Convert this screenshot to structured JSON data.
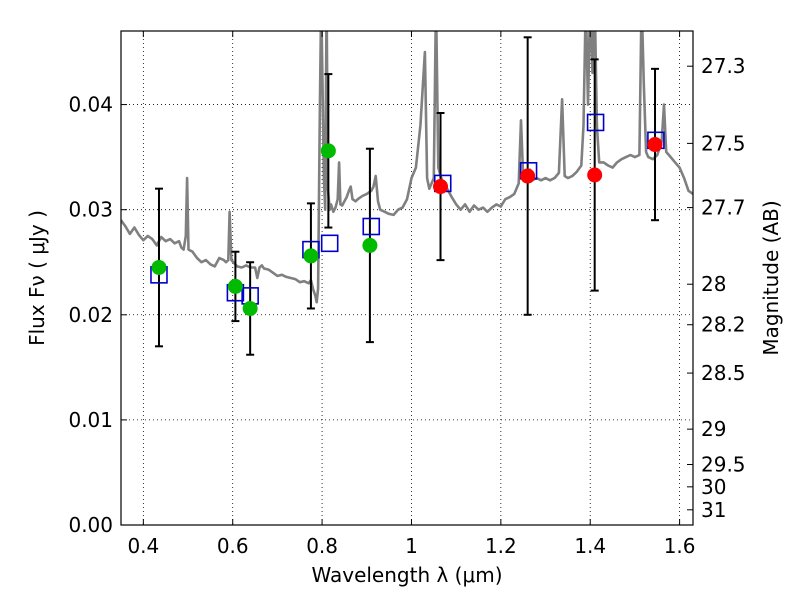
{
  "chart_data": {
    "type": "scatter",
    "xlabel": "Wavelength  λ (μm)",
    "ylabel": "Flux  Fν  ( μJy )",
    "y2label": "Magnitude (AB)",
    "xlim": [
      0.35,
      1.63
    ],
    "ylim": [
      0.0,
      0.047
    ],
    "grid": true,
    "x_ticks": [
      0.4,
      0.6,
      0.8,
      1.0,
      1.2,
      1.4,
      1.6
    ],
    "x_tick_labels": [
      "0.4",
      "0.6",
      "0.8",
      "1",
      "1.2",
      "1.4",
      "1.6"
    ],
    "y_ticks": [
      0.0,
      0.01,
      0.02,
      0.03,
      0.04
    ],
    "y_tick_labels": [
      "0.00",
      "0.01",
      "0.02",
      "0.03",
      "0.04"
    ],
    "mag_ticks": [
      27.3,
      27.5,
      27.7,
      28.0,
      28.2,
      28.5,
      29.0,
      29.5,
      30.0,
      31.0
    ],
    "mag_tick_labels": [
      "27.3",
      "27.5",
      "27.7",
      "28",
      "28.2",
      "28.5",
      "29",
      "29.5",
      "30",
      "31"
    ],
    "colors": {
      "model": "#808080",
      "observed_hst": "#00bb00",
      "observed_ir": "#ff0000",
      "model_photometry": "#0000cc",
      "errorbar": "#000000"
    },
    "observed": [
      {
        "x": 0.435,
        "y": 0.0245,
        "yerr_low": 0.0075,
        "yerr_high": 0.0075,
        "group": "observed_hst"
      },
      {
        "x": 0.606,
        "y": 0.0227,
        "yerr_low": 0.0033,
        "yerr_high": 0.0033,
        "group": "observed_hst"
      },
      {
        "x": 0.639,
        "y": 0.0206,
        "yerr_low": 0.0044,
        "yerr_high": 0.0044,
        "group": "observed_hst"
      },
      {
        "x": 0.775,
        "y": 0.0256,
        "yerr_low": 0.005,
        "yerr_high": 0.005,
        "group": "observed_hst"
      },
      {
        "x": 0.814,
        "y": 0.0356,
        "yerr_low": 0.0073,
        "yerr_high": 0.0073,
        "group": "observed_hst"
      },
      {
        "x": 0.907,
        "y": 0.0266,
        "yerr_low": 0.0092,
        "yerr_high": 0.0092,
        "group": "observed_hst"
      },
      {
        "x": 1.065,
        "y": 0.0322,
        "yerr_low": 0.007,
        "yerr_high": 0.007,
        "group": "observed_ir"
      },
      {
        "x": 1.26,
        "y": 0.0332,
        "yerr_low": 0.0132,
        "yerr_high": 0.0132,
        "group": "observed_ir"
      },
      {
        "x": 1.41,
        "y": 0.0333,
        "yerr_low": 0.011,
        "yerr_high": 0.011,
        "group": "observed_ir"
      },
      {
        "x": 1.545,
        "y": 0.0362,
        "yerr_low": 0.0072,
        "yerr_high": 0.0072,
        "group": "observed_ir"
      }
    ],
    "model_photometry": [
      {
        "x": 0.435,
        "y": 0.0238
      },
      {
        "x": 0.606,
        "y": 0.0221
      },
      {
        "x": 0.639,
        "y": 0.0218
      },
      {
        "x": 0.775,
        "y": 0.0262
      },
      {
        "x": 0.817,
        "y": 0.0268
      },
      {
        "x": 0.91,
        "y": 0.0284
      },
      {
        "x": 1.07,
        "y": 0.0325
      },
      {
        "x": 1.262,
        "y": 0.0337
      },
      {
        "x": 1.412,
        "y": 0.0383
      },
      {
        "x": 1.547,
        "y": 0.0366
      }
    ],
    "model_spectrum": [
      [
        0.35,
        0.029
      ],
      [
        0.36,
        0.0284
      ],
      [
        0.37,
        0.0277
      ],
      [
        0.38,
        0.0283
      ],
      [
        0.39,
        0.0276
      ],
      [
        0.4,
        0.0271
      ],
      [
        0.41,
        0.0275
      ],
      [
        0.42,
        0.0272
      ],
      [
        0.43,
        0.0266
      ],
      [
        0.44,
        0.0274
      ],
      [
        0.45,
        0.027
      ],
      [
        0.46,
        0.0272
      ],
      [
        0.47,
        0.0268
      ],
      [
        0.48,
        0.027
      ],
      [
        0.485,
        0.0264
      ],
      [
        0.49,
        0.0262
      ],
      [
        0.495,
        0.0275
      ],
      [
        0.498,
        0.033
      ],
      [
        0.501,
        0.0262
      ],
      [
        0.51,
        0.026
      ],
      [
        0.52,
        0.0254
      ],
      [
        0.53,
        0.025
      ],
      [
        0.54,
        0.0252
      ],
      [
        0.55,
        0.0248
      ],
      [
        0.56,
        0.0246
      ],
      [
        0.57,
        0.0254
      ],
      [
        0.58,
        0.0252
      ],
      [
        0.585,
        0.025
      ],
      [
        0.59,
        0.0252
      ],
      [
        0.593,
        0.0298
      ],
      [
        0.597,
        0.0252
      ],
      [
        0.61,
        0.0246
      ],
      [
        0.62,
        0.0245
      ],
      [
        0.63,
        0.0247
      ],
      [
        0.64,
        0.0245
      ],
      [
        0.65,
        0.0245
      ],
      [
        0.655,
        0.0235
      ],
      [
        0.66,
        0.0245
      ],
      [
        0.665,
        0.0247
      ],
      [
        0.67,
        0.0244
      ],
      [
        0.68,
        0.0243
      ],
      [
        0.69,
        0.024
      ],
      [
        0.7,
        0.0237
      ],
      [
        0.71,
        0.0238
      ],
      [
        0.72,
        0.0236
      ],
      [
        0.73,
        0.0235
      ],
      [
        0.74,
        0.0234
      ],
      [
        0.75,
        0.0231
      ],
      [
        0.76,
        0.0232
      ],
      [
        0.77,
        0.023
      ],
      [
        0.775,
        0.0233
      ],
      [
        0.78,
        0.0224
      ],
      [
        0.785,
        0.0218
      ],
      [
        0.788,
        0.0212
      ],
      [
        0.791,
        0.0225
      ],
      [
        0.795,
        0.04
      ],
      [
        0.798,
        0.05
      ],
      [
        0.801,
        0.042
      ],
      [
        0.804,
        0.033
      ],
      [
        0.807,
        0.03
      ],
      [
        0.81,
        0.05
      ],
      [
        0.813,
        0.032
      ],
      [
        0.817,
        0.03
      ],
      [
        0.82,
        0.0305
      ],
      [
        0.825,
        0.0298
      ],
      [
        0.83,
        0.0302
      ],
      [
        0.835,
        0.031
      ],
      [
        0.838,
        0.0345
      ],
      [
        0.841,
        0.0305
      ],
      [
        0.845,
        0.0304
      ],
      [
        0.85,
        0.0308
      ],
      [
        0.855,
        0.0312
      ],
      [
        0.86,
        0.0318
      ],
      [
        0.864,
        0.0322
      ],
      [
        0.868,
        0.031
      ],
      [
        0.875,
        0.0308
      ],
      [
        0.88,
        0.031
      ],
      [
        0.89,
        0.0313
      ],
      [
        0.9,
        0.0315
      ],
      [
        0.91,
        0.0318
      ],
      [
        0.915,
        0.0322
      ],
      [
        0.92,
        0.0332
      ],
      [
        0.925,
        0.0308
      ],
      [
        0.93,
        0.03
      ],
      [
        0.94,
        0.0298
      ],
      [
        0.95,
        0.0296
      ],
      [
        0.96,
        0.0295
      ],
      [
        0.97,
        0.03
      ],
      [
        0.98,
        0.0302
      ],
      [
        0.99,
        0.031
      ],
      [
        1.0,
        0.033
      ],
      [
        1.01,
        0.034
      ],
      [
        1.02,
        0.038
      ],
      [
        1.03,
        0.045
      ],
      [
        1.035,
        0.033
      ],
      [
        1.04,
        0.032
      ],
      [
        1.05,
        0.033
      ],
      [
        1.055,
        0.05
      ],
      [
        1.06,
        0.034
      ],
      [
        1.07,
        0.0325
      ],
      [
        1.08,
        0.032
      ],
      [
        1.09,
        0.0312
      ],
      [
        1.1,
        0.0305
      ],
      [
        1.11,
        0.03
      ],
      [
        1.12,
        0.0305
      ],
      [
        1.13,
        0.0298
      ],
      [
        1.14,
        0.0304
      ],
      [
        1.15,
        0.03
      ],
      [
        1.16,
        0.0302
      ],
      [
        1.17,
        0.0298
      ],
      [
        1.18,
        0.0302
      ],
      [
        1.19,
        0.0305
      ],
      [
        1.2,
        0.0303
      ],
      [
        1.21,
        0.031
      ],
      [
        1.22,
        0.0312
      ],
      [
        1.23,
        0.0315
      ],
      [
        1.24,
        0.0325
      ],
      [
        1.245,
        0.0385
      ],
      [
        1.25,
        0.033
      ],
      [
        1.26,
        0.0328
      ],
      [
        1.265,
        0.0338
      ],
      [
        1.27,
        0.0328
      ],
      [
        1.28,
        0.033
      ],
      [
        1.29,
        0.0328
      ],
      [
        1.3,
        0.033
      ],
      [
        1.31,
        0.0328
      ],
      [
        1.32,
        0.033
      ],
      [
        1.33,
        0.0335
      ],
      [
        1.337,
        0.0405
      ],
      [
        1.343,
        0.0332
      ],
      [
        1.35,
        0.033
      ],
      [
        1.36,
        0.0332
      ],
      [
        1.37,
        0.0336
      ],
      [
        1.38,
        0.0342
      ],
      [
        1.385,
        0.038
      ],
      [
        1.39,
        0.05
      ],
      [
        1.395,
        0.04
      ],
      [
        1.4,
        0.05
      ],
      [
        1.405,
        0.043
      ],
      [
        1.41,
        0.05
      ],
      [
        1.415,
        0.038
      ],
      [
        1.42,
        0.0345
      ],
      [
        1.43,
        0.0345
      ],
      [
        1.44,
        0.0342
      ],
      [
        1.45,
        0.034
      ],
      [
        1.46,
        0.0345
      ],
      [
        1.47,
        0.0348
      ],
      [
        1.48,
        0.035
      ],
      [
        1.49,
        0.0352
      ],
      [
        1.5,
        0.035
      ],
      [
        1.51,
        0.0352
      ],
      [
        1.515,
        0.05
      ],
      [
        1.52,
        0.042
      ],
      [
        1.525,
        0.0355
      ],
      [
        1.53,
        0.035
      ],
      [
        1.54,
        0.0348
      ],
      [
        1.55,
        0.0352
      ],
      [
        1.56,
        0.0365
      ],
      [
        1.565,
        0.04
      ],
      [
        1.57,
        0.0355
      ],
      [
        1.58,
        0.035
      ],
      [
        1.59,
        0.0345
      ],
      [
        1.6,
        0.034
      ],
      [
        1.61,
        0.033
      ],
      [
        1.62,
        0.0318
      ],
      [
        1.63,
        0.0315
      ]
    ]
  }
}
